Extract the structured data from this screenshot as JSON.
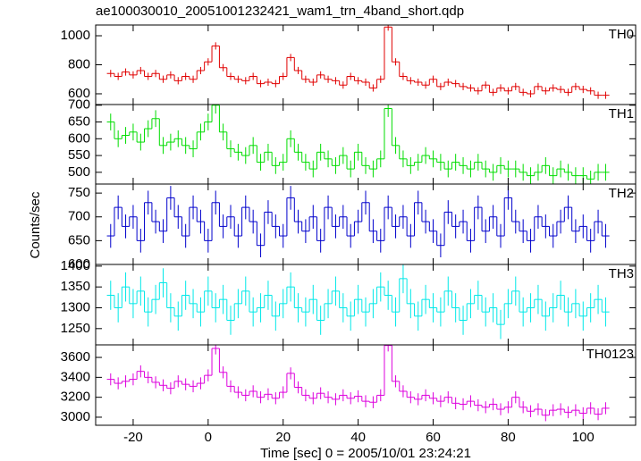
{
  "chart_data": [
    {
      "type": "line",
      "title": "ae100030010_20051001232421_wam1_trn_4band_short.qdp",
      "label": "TH0",
      "xlim": [
        -30,
        114
      ],
      "ylim": [
        526,
        1074
      ],
      "yticks": [
        600,
        800,
        1000
      ],
      "x": [
        -26,
        -24,
        -22,
        -20,
        -18,
        -16,
        -14,
        -12,
        -10,
        -8,
        -6,
        -4,
        -2,
        0,
        2,
        4,
        6,
        8,
        10,
        12,
        14,
        16,
        18,
        20,
        22,
        24,
        26,
        28,
        30,
        32,
        34,
        36,
        38,
        40,
        42,
        44,
        46,
        48,
        50,
        52,
        54,
        56,
        58,
        60,
        62,
        64,
        66,
        68,
        70,
        72,
        74,
        76,
        78,
        80,
        82,
        84,
        86,
        88,
        90,
        92,
        94,
        96,
        98,
        100,
        102,
        104,
        106
      ],
      "series": [
        {
          "name": "TH0",
          "color": "#e00000",
          "error": 25,
          "values": [
            740,
            720,
            750,
            730,
            760,
            720,
            740,
            700,
            730,
            690,
            720,
            700,
            760,
            820,
            930,
            780,
            720,
            700,
            690,
            720,
            670,
            680,
            670,
            720,
            850,
            760,
            700,
            680,
            730,
            700,
            690,
            660,
            720,
            690,
            680,
            640,
            700,
            1060,
            820,
            720,
            690,
            680,
            660,
            700,
            650,
            680,
            670,
            650,
            640,
            620,
            660,
            610,
            640,
            620,
            650,
            610,
            600,
            650,
            620,
            640,
            630,
            610,
            650,
            630,
            620,
            590,
            590
          ]
        }
      ]
    },
    {
      "type": "line",
      "label": "TH1",
      "xlim": [
        -30,
        114
      ],
      "ylim": [
        465,
        702
      ],
      "yticks": [
        500,
        550,
        600,
        650,
        700
      ],
      "x": [
        -26,
        -24,
        -22,
        -20,
        -18,
        -16,
        -14,
        -12,
        -10,
        -8,
        -6,
        -4,
        -2,
        0,
        2,
        4,
        6,
        8,
        10,
        12,
        14,
        16,
        18,
        20,
        22,
        24,
        26,
        28,
        30,
        32,
        34,
        36,
        38,
        40,
        42,
        44,
        46,
        48,
        50,
        52,
        54,
        56,
        58,
        60,
        62,
        64,
        66,
        68,
        70,
        72,
        74,
        76,
        78,
        80,
        82,
        84,
        86,
        88,
        90,
        92,
        94,
        96,
        98,
        100,
        102,
        104,
        106
      ],
      "series": [
        {
          "name": "TH1",
          "color": "#00dd00",
          "error": 25,
          "values": [
            650,
            600,
            610,
            620,
            590,
            630,
            660,
            580,
            590,
            600,
            580,
            570,
            620,
            650,
            700,
            620,
            570,
            560,
            550,
            580,
            530,
            560,
            520,
            530,
            600,
            560,
            530,
            510,
            560,
            540,
            520,
            550,
            510,
            560,
            520,
            510,
            540,
            690,
            580,
            540,
            520,
            530,
            550,
            540,
            530,
            510,
            530,
            520,
            510,
            530,
            510,
            500,
            520,
            510,
            510,
            500,
            490,
            500,
            520,
            490,
            510,
            500,
            490,
            490,
            480,
            500,
            500
          ]
        }
      ]
    },
    {
      "type": "line",
      "label": "TH2",
      "ylabel": "Counts/sec",
      "xlim": [
        -30,
        114
      ],
      "ylim": [
        600,
        769
      ],
      "yticks": [
        600,
        650,
        700,
        750
      ],
      "x": [
        -26,
        -24,
        -22,
        -20,
        -18,
        -16,
        -14,
        -12,
        -10,
        -8,
        -6,
        -4,
        -2,
        0,
        2,
        4,
        6,
        8,
        10,
        12,
        14,
        16,
        18,
        20,
        22,
        24,
        26,
        28,
        30,
        32,
        34,
        36,
        38,
        40,
        42,
        44,
        46,
        48,
        50,
        52,
        54,
        56,
        58,
        60,
        62,
        64,
        66,
        68,
        70,
        72,
        74,
        76,
        78,
        80,
        82,
        84,
        86,
        88,
        90,
        92,
        94,
        96,
        98,
        100,
        102,
        104,
        106
      ],
      "series": [
        {
          "name": "TH2",
          "color": "#0000cc",
          "error": 25,
          "values": [
            660,
            720,
            680,
            700,
            650,
            730,
            690,
            670,
            740,
            700,
            660,
            720,
            690,
            650,
            730,
            680,
            700,
            660,
            720,
            690,
            640,
            710,
            680,
            660,
            740,
            690,
            670,
            700,
            650,
            720,
            680,
            700,
            660,
            690,
            730,
            670,
            650,
            720,
            680,
            700,
            660,
            730,
            690,
            670,
            640,
            710,
            680,
            690,
            650,
            720,
            670,
            700,
            660,
            740,
            690,
            670,
            650,
            700,
            680,
            660,
            690,
            720,
            670,
            680,
            650,
            690,
            660
          ]
        }
      ]
    },
    {
      "type": "line",
      "label": "TH3",
      "xlim": [
        -30,
        114
      ],
      "ylim": [
        1211,
        1404
      ],
      "yticks": [
        1250,
        1300,
        1350,
        1400
      ],
      "x": [
        -26,
        -24,
        -22,
        -20,
        -18,
        -16,
        -14,
        -12,
        -10,
        -8,
        -6,
        -4,
        -2,
        0,
        2,
        4,
        6,
        8,
        10,
        12,
        14,
        16,
        18,
        20,
        22,
        24,
        26,
        28,
        30,
        32,
        34,
        36,
        38,
        40,
        42,
        44,
        46,
        48,
        50,
        52,
        54,
        56,
        58,
        60,
        62,
        64,
        66,
        68,
        70,
        72,
        74,
        76,
        78,
        80,
        82,
        84,
        86,
        88,
        90,
        92,
        94,
        96,
        98,
        100,
        102,
        104,
        106
      ],
      "series": [
        {
          "name": "TH3",
          "color": "#00e8e8",
          "error": 35,
          "values": [
            1330,
            1300,
            1350,
            1310,
            1340,
            1290,
            1320,
            1360,
            1300,
            1280,
            1330,
            1310,
            1290,
            1340,
            1300,
            1320,
            1270,
            1310,
            1340,
            1290,
            1300,
            1330,
            1280,
            1310,
            1350,
            1300,
            1290,
            1320,
            1270,
            1310,
            1340,
            1300,
            1280,
            1320,
            1290,
            1310,
            1350,
            1330,
            1290,
            1370,
            1310,
            1280,
            1320,
            1300,
            1290,
            1340,
            1300,
            1270,
            1310,
            1330,
            1290,
            1300,
            1260,
            1310,
            1340,
            1290,
            1300,
            1320,
            1280,
            1300,
            1330,
            1290,
            1310,
            1280,
            1300,
            1320,
            1290
          ]
        }
      ]
    },
    {
      "type": "line",
      "label": "TH0123",
      "xlabel": "Time [sec] 0 = 2005/10/01 23:24:21",
      "xlim": [
        -30,
        114
      ],
      "xticks": [
        -20,
        0,
        20,
        40,
        60,
        80,
        100
      ],
      "ylim": [
        2919,
        3726
      ],
      "yticks": [
        3000,
        3200,
        3400,
        3600
      ],
      "x": [
        -26,
        -24,
        -22,
        -20,
        -18,
        -16,
        -14,
        -12,
        -10,
        -8,
        -6,
        -4,
        -2,
        0,
        2,
        4,
        6,
        8,
        10,
        12,
        14,
        16,
        18,
        20,
        22,
        24,
        26,
        28,
        30,
        32,
        34,
        36,
        38,
        40,
        42,
        44,
        46,
        48,
        50,
        52,
        54,
        56,
        58,
        60,
        62,
        64,
        66,
        68,
        70,
        72,
        74,
        76,
        78,
        80,
        82,
        84,
        86,
        88,
        90,
        92,
        94,
        96,
        98,
        100,
        102,
        104,
        106
      ],
      "series": [
        {
          "name": "TH0123",
          "color": "#dd00dd",
          "error": 60,
          "values": [
            3380,
            3340,
            3360,
            3380,
            3460,
            3400,
            3350,
            3320,
            3290,
            3360,
            3330,
            3310,
            3340,
            3420,
            3690,
            3450,
            3310,
            3250,
            3220,
            3260,
            3200,
            3230,
            3190,
            3250,
            3440,
            3300,
            3220,
            3190,
            3240,
            3200,
            3180,
            3220,
            3190,
            3210,
            3160,
            3150,
            3220,
            3720,
            3360,
            3260,
            3200,
            3180,
            3220,
            3190,
            3160,
            3200,
            3140,
            3130,
            3160,
            3120,
            3100,
            3130,
            3080,
            3100,
            3200,
            3100,
            3060,
            3080,
            3020,
            3070,
            3080,
            3050,
            3070,
            3040,
            3090,
            3030,
            3090
          ]
        }
      ]
    }
  ]
}
